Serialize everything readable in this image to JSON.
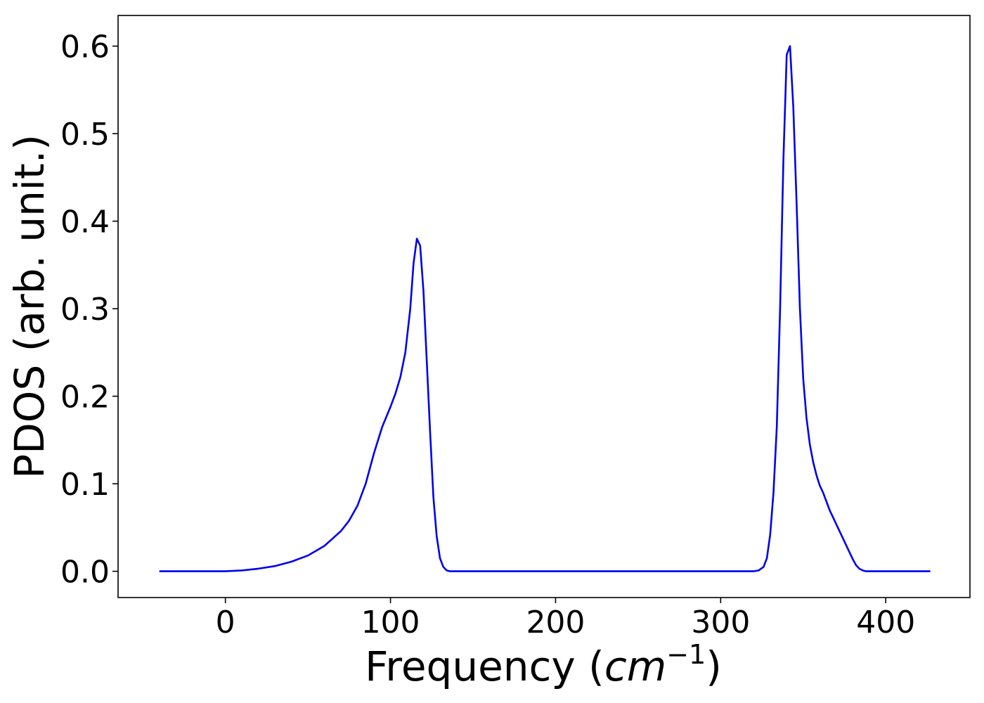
{
  "chart_data": {
    "type": "line",
    "title": "",
    "xlabel_main": "Frequency (",
    "xlabel_math": "cm",
    "xlabel_sup": "−1",
    "xlabel_close": ")",
    "ylabel": "PDOS (arb. unit.)",
    "xlim": [
      -65,
      451
    ],
    "ylim": [
      -0.03,
      0.635
    ],
    "xticks": [
      0,
      100,
      200,
      300,
      400
    ],
    "xtick_labels": [
      "0",
      "100",
      "200",
      "300",
      "400"
    ],
    "yticks": [
      0.0,
      0.1,
      0.2,
      0.3,
      0.4,
      0.5,
      0.6
    ],
    "ytick_labels": [
      "0.0",
      "0.1",
      "0.2",
      "0.3",
      "0.4",
      "0.5",
      "0.6"
    ],
    "grid": false,
    "legend": false,
    "series": [
      {
        "color": "#0000ee",
        "x": [
          -40,
          -20,
          0,
          10,
          20,
          30,
          40,
          50,
          60,
          70,
          75,
          80,
          85,
          90,
          95,
          100,
          103,
          106,
          109,
          112,
          114,
          116,
          118,
          120,
          122,
          124,
          126,
          128,
          130,
          132,
          134,
          136,
          140,
          150,
          200,
          250,
          300,
          320,
          323,
          326,
          328,
          330,
          332,
          334,
          336,
          338,
          340,
          342,
          344,
          346,
          348,
          350,
          352,
          354,
          356,
          358,
          360,
          362,
          364,
          366,
          368,
          370,
          372,
          374,
          376,
          378,
          380,
          382,
          384,
          386,
          388,
          390,
          392,
          394,
          396,
          398,
          400,
          410,
          427
        ],
        "y": [
          0.0,
          0.0,
          0.0,
          0.001,
          0.003,
          0.006,
          0.011,
          0.018,
          0.029,
          0.046,
          0.058,
          0.075,
          0.1,
          0.135,
          0.165,
          0.188,
          0.203,
          0.222,
          0.25,
          0.3,
          0.352,
          0.38,
          0.372,
          0.32,
          0.24,
          0.16,
          0.085,
          0.04,
          0.015,
          0.005,
          0.001,
          0.0,
          0.0,
          0.0,
          0.0,
          0.0,
          0.0,
          0.0,
          0.001,
          0.005,
          0.015,
          0.042,
          0.09,
          0.165,
          0.3,
          0.47,
          0.59,
          0.6,
          0.53,
          0.42,
          0.3,
          0.22,
          0.175,
          0.145,
          0.125,
          0.11,
          0.098,
          0.09,
          0.08,
          0.07,
          0.062,
          0.054,
          0.046,
          0.038,
          0.03,
          0.022,
          0.014,
          0.007,
          0.003,
          0.001,
          0.0,
          0.0,
          0.0,
          0.0,
          0.0,
          0.0,
          0.0,
          0.0,
          0.0
        ]
      }
    ]
  }
}
